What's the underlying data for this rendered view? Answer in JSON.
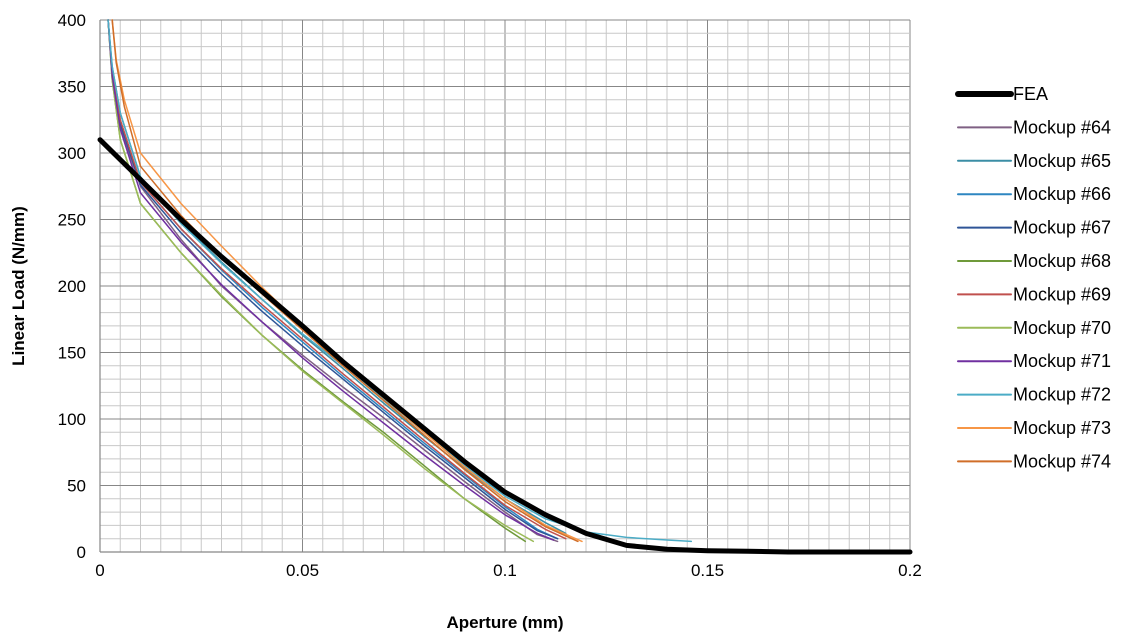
{
  "chart_data": {
    "type": "line",
    "title": "",
    "xlabel": "Aperture (mm)",
    "ylabel": "Linear Load (N/mm)",
    "xlim": [
      0,
      0.2
    ],
    "ylim": [
      0,
      400
    ],
    "xticks": [
      0,
      0.05,
      0.1,
      0.15,
      0.2
    ],
    "xtick_labels": [
      "0",
      "0.05",
      "0.1",
      "0.15",
      "0.2"
    ],
    "yticks": [
      0,
      50,
      100,
      150,
      200,
      250,
      300,
      350,
      400
    ],
    "ytick_labels": [
      "0",
      "50",
      "100",
      "150",
      "200",
      "250",
      "300",
      "350",
      "400"
    ],
    "grid": true,
    "legend_position": "right",
    "series": [
      {
        "name": "FEA",
        "color": "#000000",
        "width": 5,
        "points": [
          [
            0,
            310
          ],
          [
            0.01,
            280
          ],
          [
            0.02,
            250
          ],
          [
            0.03,
            222
          ],
          [
            0.04,
            196
          ],
          [
            0.05,
            170
          ],
          [
            0.06,
            143
          ],
          [
            0.07,
            118
          ],
          [
            0.08,
            93
          ],
          [
            0.09,
            68
          ],
          [
            0.1,
            45
          ],
          [
            0.11,
            28
          ],
          [
            0.12,
            14
          ],
          [
            0.13,
            5
          ],
          [
            0.14,
            2
          ],
          [
            0.15,
            1
          ],
          [
            0.16,
            0.5
          ],
          [
            0.17,
            0
          ],
          [
            0.2,
            0
          ]
        ]
      },
      {
        "name": "Mockup #64",
        "color": "#7f6084",
        "width": 1.5,
        "points": [
          [
            0.002,
            400
          ],
          [
            0.003,
            360
          ],
          [
            0.005,
            320
          ],
          [
            0.01,
            275
          ],
          [
            0.02,
            235
          ],
          [
            0.03,
            200
          ],
          [
            0.04,
            173
          ],
          [
            0.05,
            148
          ],
          [
            0.06,
            124
          ],
          [
            0.07,
            101
          ],
          [
            0.08,
            77
          ],
          [
            0.09,
            53
          ],
          [
            0.1,
            30
          ],
          [
            0.108,
            13
          ],
          [
            0.113,
            8
          ]
        ]
      },
      {
        "name": "Mockup #65",
        "color": "#3b8ea5",
        "width": 1.5,
        "points": [
          [
            0.002,
            400
          ],
          [
            0.003,
            365
          ],
          [
            0.005,
            330
          ],
          [
            0.01,
            282
          ],
          [
            0.02,
            248
          ],
          [
            0.03,
            218
          ],
          [
            0.04,
            190
          ],
          [
            0.05,
            163
          ],
          [
            0.06,
            138
          ],
          [
            0.07,
            112
          ],
          [
            0.08,
            87
          ],
          [
            0.09,
            63
          ],
          [
            0.1,
            40
          ],
          [
            0.11,
            22
          ],
          [
            0.115,
            14
          ]
        ]
      },
      {
        "name": "Mockup #66",
        "color": "#2e86c1",
        "width": 1.5,
        "points": [
          [
            0.002,
            400
          ],
          [
            0.003,
            360
          ],
          [
            0.005,
            322
          ],
          [
            0.01,
            278
          ],
          [
            0.02,
            243
          ],
          [
            0.03,
            212
          ],
          [
            0.04,
            184
          ],
          [
            0.05,
            158
          ],
          [
            0.06,
            132
          ],
          [
            0.07,
            107
          ],
          [
            0.08,
            82
          ],
          [
            0.09,
            58
          ],
          [
            0.1,
            34
          ],
          [
            0.108,
            17
          ],
          [
            0.113,
            10
          ]
        ]
      },
      {
        "name": "Mockup #67",
        "color": "#2f5597",
        "width": 1.5,
        "points": [
          [
            0.002,
            400
          ],
          [
            0.003,
            360
          ],
          [
            0.005,
            322
          ],
          [
            0.01,
            276
          ],
          [
            0.02,
            240
          ],
          [
            0.03,
            209
          ],
          [
            0.04,
            181
          ],
          [
            0.05,
            155
          ],
          [
            0.06,
            130
          ],
          [
            0.07,
            105
          ],
          [
            0.08,
            80
          ],
          [
            0.09,
            56
          ],
          [
            0.1,
            32
          ],
          [
            0.108,
            16
          ],
          [
            0.113,
            10
          ]
        ]
      },
      {
        "name": "Mockup #68",
        "color": "#6f9a3a",
        "width": 1.5,
        "points": [
          [
            0.002,
            400
          ],
          [
            0.003,
            355
          ],
          [
            0.005,
            310
          ],
          [
            0.01,
            262
          ],
          [
            0.02,
            225
          ],
          [
            0.03,
            192
          ],
          [
            0.04,
            163
          ],
          [
            0.05,
            137
          ],
          [
            0.06,
            113
          ],
          [
            0.07,
            90
          ],
          [
            0.08,
            65
          ],
          [
            0.09,
            40
          ],
          [
            0.1,
            18
          ],
          [
            0.105,
            8
          ]
        ]
      },
      {
        "name": "Mockup #69",
        "color": "#c0504d",
        "width": 1.5,
        "points": [
          [
            0.002,
            400
          ],
          [
            0.003,
            362
          ],
          [
            0.005,
            325
          ],
          [
            0.01,
            278
          ],
          [
            0.02,
            243
          ],
          [
            0.03,
            213
          ],
          [
            0.04,
            186
          ],
          [
            0.05,
            160
          ],
          [
            0.06,
            134
          ],
          [
            0.07,
            109
          ],
          [
            0.08,
            84
          ],
          [
            0.09,
            59
          ],
          [
            0.1,
            35
          ],
          [
            0.11,
            17
          ],
          [
            0.115,
            10
          ]
        ]
      },
      {
        "name": "Mockup #70",
        "color": "#9bbb59",
        "width": 1.5,
        "points": [
          [
            0.002,
            400
          ],
          [
            0.003,
            355
          ],
          [
            0.005,
            310
          ],
          [
            0.01,
            262
          ],
          [
            0.02,
            225
          ],
          [
            0.03,
            193
          ],
          [
            0.04,
            163
          ],
          [
            0.05,
            136
          ],
          [
            0.06,
            112
          ],
          [
            0.07,
            88
          ],
          [
            0.08,
            63
          ],
          [
            0.09,
            40
          ],
          [
            0.1,
            20
          ],
          [
            0.107,
            8
          ]
        ]
      },
      {
        "name": "Mockup #71",
        "color": "#7030a0",
        "width": 1.5,
        "points": [
          [
            0.002,
            400
          ],
          [
            0.003,
            358
          ],
          [
            0.005,
            318
          ],
          [
            0.01,
            270
          ],
          [
            0.02,
            233
          ],
          [
            0.03,
            201
          ],
          [
            0.04,
            173
          ],
          [
            0.05,
            146
          ],
          [
            0.06,
            121
          ],
          [
            0.07,
            97
          ],
          [
            0.08,
            73
          ],
          [
            0.09,
            50
          ],
          [
            0.1,
            28
          ],
          [
            0.108,
            14
          ],
          [
            0.112,
            9
          ]
        ]
      },
      {
        "name": "Mockup #72",
        "color": "#4bacc6",
        "width": 1.5,
        "points": [
          [
            0.002,
            400
          ],
          [
            0.003,
            365
          ],
          [
            0.005,
            330
          ],
          [
            0.01,
            282
          ],
          [
            0.02,
            247
          ],
          [
            0.03,
            217
          ],
          [
            0.04,
            190
          ],
          [
            0.05,
            164
          ],
          [
            0.06,
            140
          ],
          [
            0.07,
            115
          ],
          [
            0.08,
            90
          ],
          [
            0.09,
            65
          ],
          [
            0.1,
            42
          ],
          [
            0.11,
            25
          ],
          [
            0.12,
            15
          ],
          [
            0.13,
            11
          ],
          [
            0.14,
            9
          ],
          [
            0.146,
            8
          ]
        ]
      },
      {
        "name": "Mockup #73",
        "color": "#f79646",
        "width": 1.5,
        "points": [
          [
            0.003,
            400
          ],
          [
            0.004,
            370
          ],
          [
            0.006,
            340
          ],
          [
            0.01,
            300
          ],
          [
            0.02,
            262
          ],
          [
            0.03,
            230
          ],
          [
            0.04,
            199
          ],
          [
            0.05,
            170
          ],
          [
            0.06,
            143
          ],
          [
            0.07,
            116
          ],
          [
            0.08,
            90
          ],
          [
            0.09,
            64
          ],
          [
            0.1,
            40
          ],
          [
            0.11,
            20
          ],
          [
            0.119,
            8
          ]
        ]
      },
      {
        "name": "Mockup #74",
        "color": "#d06e29",
        "width": 1.5,
        "points": [
          [
            0.003,
            400
          ],
          [
            0.004,
            368
          ],
          [
            0.006,
            335
          ],
          [
            0.01,
            290
          ],
          [
            0.02,
            253
          ],
          [
            0.03,
            222
          ],
          [
            0.04,
            194
          ],
          [
            0.05,
            167
          ],
          [
            0.06,
            140
          ],
          [
            0.07,
            114
          ],
          [
            0.08,
            88
          ],
          [
            0.09,
            62
          ],
          [
            0.1,
            38
          ],
          [
            0.11,
            19
          ],
          [
            0.118,
            8
          ]
        ]
      }
    ]
  }
}
